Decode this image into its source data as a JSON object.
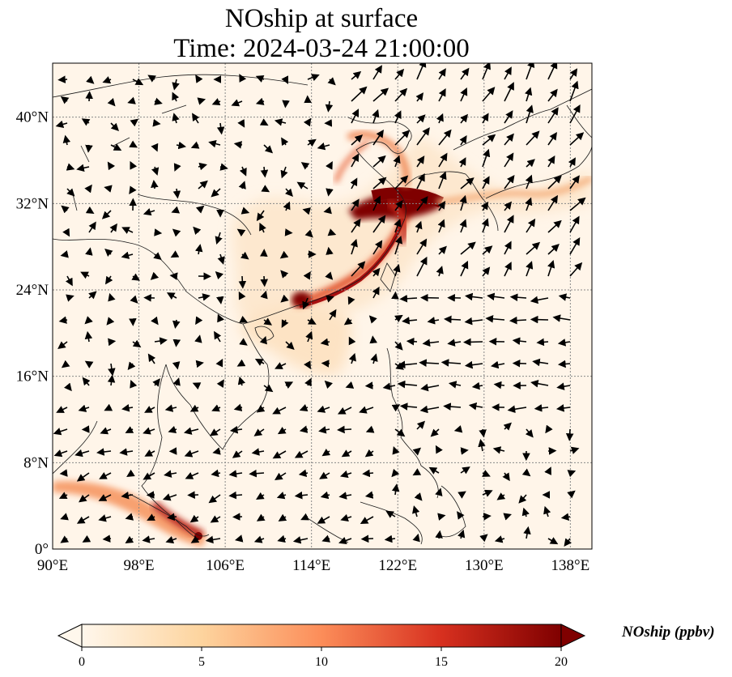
{
  "title": {
    "line1": "NOship at surface",
    "line2": "Time: 2024-03-24 21:00:00"
  },
  "map": {
    "lon_range": [
      90,
      140
    ],
    "lat_range": [
      0,
      45
    ],
    "lon_ticks": [
      "90°E",
      "98°E",
      "106°E",
      "114°E",
      "122°E",
      "130°E",
      "138°E"
    ],
    "lat_ticks": [
      "0°",
      "8°N",
      "16°N",
      "24°N",
      "32°N",
      "40°N"
    ],
    "gridlines": true,
    "wind_vectors": true
  },
  "colorbar": {
    "label": "NOship (ppbv)",
    "ticks": [
      "0",
      "5",
      "10",
      "15",
      "20"
    ],
    "range": [
      0,
      20
    ],
    "extend": "both",
    "colormap": "OrRd",
    "colors": [
      "#fff7ec",
      "#fdd49e",
      "#fc8d59",
      "#d7301f",
      "#7f0000"
    ]
  }
}
